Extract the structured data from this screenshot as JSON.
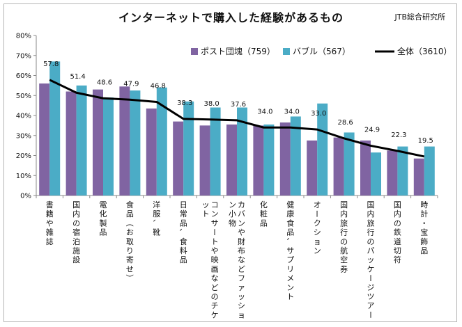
{
  "chart_data": {
    "type": "bar",
    "title": "インターネットで購入した経験があるもの",
    "source": "JTB総合研究所",
    "categories": [
      "書籍や雑誌",
      "国内の宿泊施設",
      "電化製品",
      "食品（お取り寄せ）",
      "洋服、靴",
      "日常品、食料品",
      "コンサートや映画などのチケット",
      "カバンや財布などファッション小物",
      "化粧品",
      "健康食品、サプリメント",
      "オークション",
      "国内旅行の航空券",
      "国内旅行のパッケージツアー",
      "国内の鉄道切符",
      "時計・宝飾品"
    ],
    "series": [
      {
        "name": "ポスト団塊（759）",
        "kind": "bar",
        "color": "#8064a2",
        "values": [
          56,
          52,
          53,
          54.5,
          43.5,
          37,
          35,
          35.5,
          35,
          36.5,
          27.5,
          29,
          27.5,
          22.5,
          18.5
        ]
      },
      {
        "name": "バブル（567）",
        "kind": "bar",
        "color": "#4bacc6",
        "values": [
          67,
          55,
          49,
          52.5,
          54,
          47,
          44,
          44,
          35.5,
          39.5,
          46,
          31.5,
          21.5,
          24.5,
          24.5
        ]
      },
      {
        "name": "全体（3610）",
        "kind": "line",
        "color": "#000000",
        "values": [
          57.8,
          51.4,
          48.6,
          47.9,
          46.8,
          38.3,
          38.0,
          37.6,
          34.0,
          34.0,
          33.0,
          28.6,
          24.9,
          22.3,
          19.5
        ],
        "labels": [
          "57.8",
          "51.4",
          "48.6",
          "47.9",
          "46.8",
          "38.3",
          "38.0",
          "37.6",
          "34.0",
          "34.0",
          "33.0",
          "28.6",
          "24.9",
          "22.3",
          "19.5"
        ]
      }
    ],
    "ylim": [
      0,
      80
    ],
    "yticks": [
      "0%",
      "10%",
      "20%",
      "30%",
      "40%",
      "50%",
      "60%",
      "70%",
      "80%"
    ],
    "legend_position": "top-right",
    "grid": false
  }
}
